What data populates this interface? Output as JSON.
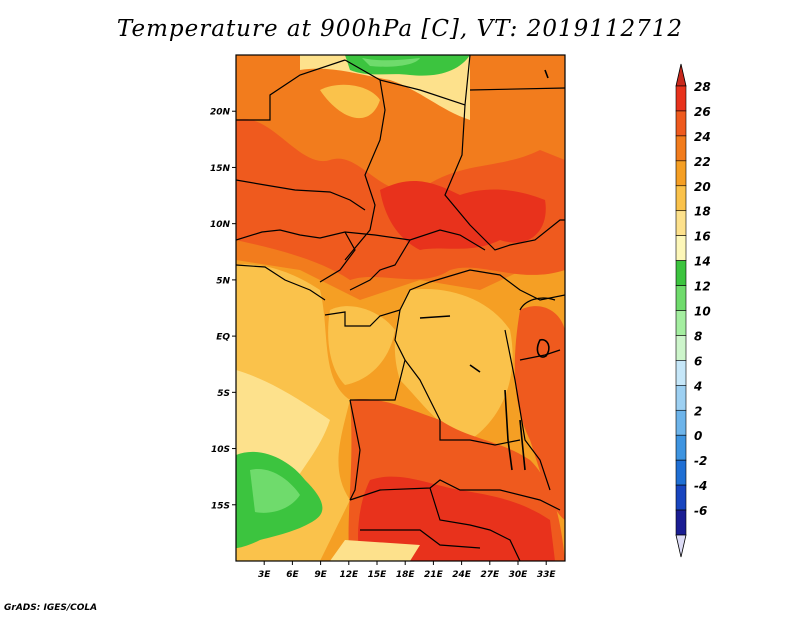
{
  "title": "Temperature at 900hPa [C], VT: 2019112712",
  "credit": "GrADS: IGES/COLA",
  "map": {
    "lat_ticks": [
      {
        "label": "20N",
        "lat": 20
      },
      {
        "label": "15N",
        "lat": 15
      },
      {
        "label": "10N",
        "lat": 10
      },
      {
        "label": "5N",
        "lat": 5
      },
      {
        "label": "EQ",
        "lat": 0
      },
      {
        "label": "5S",
        "lat": -5
      },
      {
        "label": "10S",
        "lat": -10
      },
      {
        "label": "15S",
        "lat": -15
      }
    ],
    "lon_ticks": [
      {
        "label": "3E",
        "lon": 3
      },
      {
        "label": "6E",
        "lon": 6
      },
      {
        "label": "9E",
        "lon": 9
      },
      {
        "label": "12E",
        "lon": 12
      },
      {
        "label": "15E",
        "lon": 15
      },
      {
        "label": "18E",
        "lon": 18
      },
      {
        "label": "21E",
        "lon": 21
      },
      {
        "label": "24E",
        "lon": 24
      },
      {
        "label": "27E",
        "lon": 27
      },
      {
        "label": "30E",
        "lon": 30
      },
      {
        "label": "33E",
        "lon": 33
      }
    ],
    "lon_range": [
      0,
      35
    ],
    "lat_range": [
      -20,
      25
    ]
  },
  "colorbar": {
    "levels": [
      "28",
      "26",
      "24",
      "22",
      "20",
      "18",
      "16",
      "14",
      "12",
      "10",
      "8",
      "6",
      "4",
      "2",
      "0",
      "-2",
      "-4",
      "-6"
    ],
    "colors_top_to_bottom": [
      "#e8321c",
      "#ef5a1e",
      "#f27c1d",
      "#f59f24",
      "#fac24b",
      "#fde18c",
      "#fdf7b9",
      "#3cc43f",
      "#6fdb6c",
      "#a4eea0",
      "#cdf5cb",
      "#c6e7f9",
      "#9dd0f2",
      "#6db4ea",
      "#3e94e0",
      "#1f6fd4",
      "#1845bf",
      "#1a1d93"
    ],
    "top_arrow_color": "#c8281c",
    "bottom_arrow_color": "#dddcf6"
  }
}
